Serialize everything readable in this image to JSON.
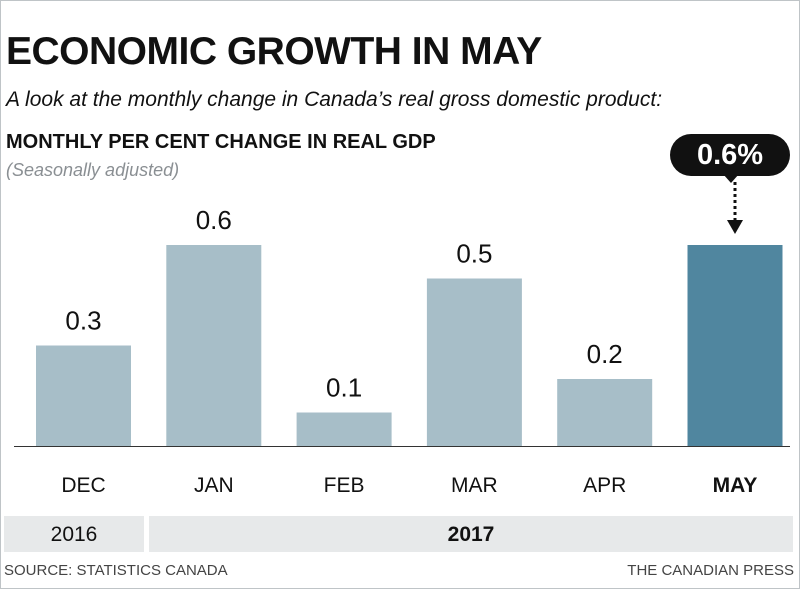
{
  "header": {
    "title": "ECONOMIC GROWTH IN MAY",
    "subtitle": "A look at the monthly change in Canada’s real gross domestic product:"
  },
  "chart_heading": "MONTHLY PER CENT CHANGE IN REAL GDP",
  "chart_note": "(Seasonally adjusted)",
  "callout": {
    "text": "0.6%"
  },
  "years": {
    "first": "2016",
    "second": "2017"
  },
  "footer": {
    "source": "SOURCE: STATISTICS CANADA",
    "credit": "THE CANADIAN PRESS"
  },
  "colors": {
    "bar": "#a7bec8",
    "highlight": "#50869f",
    "axis": "#333333"
  },
  "chart_data": {
    "type": "bar",
    "title": "MONTHLY PER CENT CHANGE IN REAL GDP",
    "subtitle": "(Seasonally adjusted)",
    "categories": [
      "DEC",
      "JAN",
      "FEB",
      "MAR",
      "APR",
      "MAY"
    ],
    "values": [
      0.3,
      0.6,
      0.1,
      0.5,
      0.2,
      0.6
    ],
    "data_labels": [
      "0.3",
      "0.6",
      "0.1",
      "0.5",
      "0.2",
      ""
    ],
    "highlight": "MAY",
    "ylim": [
      0,
      0.6
    ],
    "xlabel": "",
    "ylabel": "",
    "grid": false
  }
}
